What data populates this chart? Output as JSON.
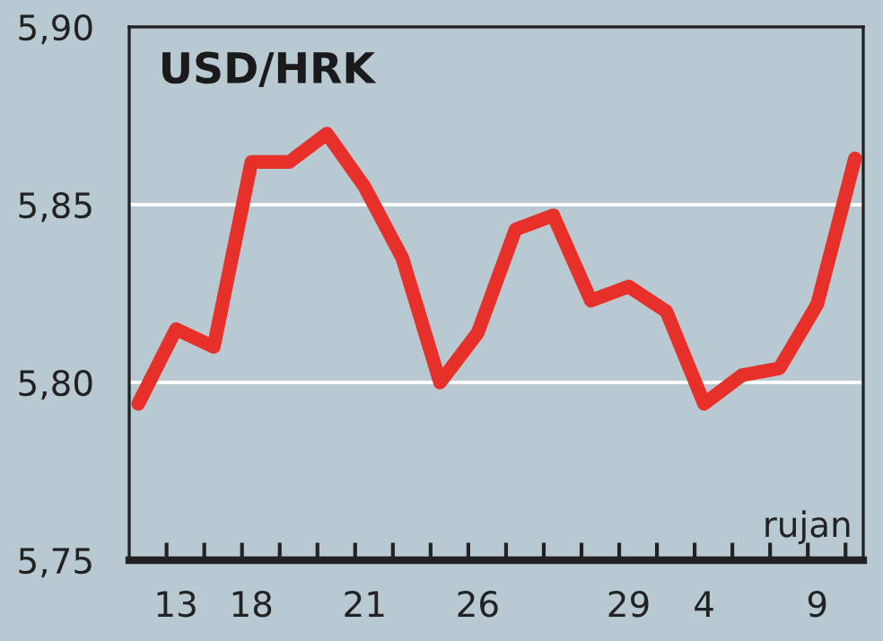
{
  "chart_data": {
    "type": "line",
    "title": "USD/HRK",
    "annotations": [
      "rujan"
    ],
    "categories": [
      null,
      "13",
      null,
      "18",
      null,
      null,
      "21",
      null,
      null,
      "26",
      null,
      null,
      null,
      "29",
      null,
      "4",
      null,
      null,
      "9",
      null
    ],
    "series": [
      {
        "color": "#e8302a",
        "values": [
          5.794,
          5.815,
          5.81,
          5.862,
          5.862,
          5.87,
          5.855,
          5.835,
          5.8,
          5.814,
          5.843,
          5.847,
          5.823,
          5.827,
          5.82,
          5.794,
          5.802,
          5.804,
          5.822,
          5.863
        ]
      }
    ],
    "ylim": [
      5.75,
      5.9
    ],
    "yticks": [
      {
        "value": 5.75,
        "label": "5,75"
      },
      {
        "value": 5.8,
        "label": "5,80"
      },
      {
        "value": 5.85,
        "label": "5,85"
      },
      {
        "value": 5.9,
        "label": "5,90"
      }
    ],
    "grid": "y",
    "marker": "none",
    "line_style": "solid",
    "legend": false
  }
}
